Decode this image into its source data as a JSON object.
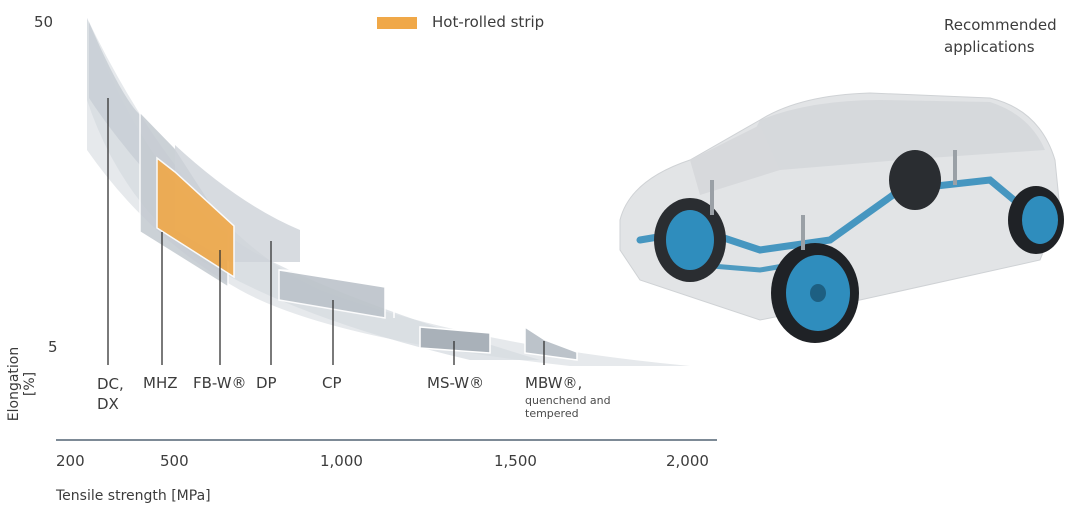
{
  "colors": {
    "accent": "#f0a848",
    "band_light": "#e3e6ea",
    "band_mid": "#ccd2d9",
    "steel_fill": "#b4bbc3",
    "axis": "#7d8a96",
    "hot_rolled": "#f0a848"
  },
  "legend": {
    "label": "Hot-rolled strip",
    "color": "#f0a848"
  },
  "recommended": {
    "line1": "Recommended",
    "line2": "applications"
  },
  "y_axis": {
    "label": "Elongation [%]",
    "ticks": [
      "50",
      "5"
    ],
    "scale": "log"
  },
  "x_axis": {
    "label": "Tensile strength [MPa]",
    "ticks": [
      "200",
      "500",
      "1,000",
      "1,500",
      "2,000"
    ]
  },
  "grades": [
    {
      "name": "DC,",
      "name2": "DX"
    },
    {
      "name": "MHZ"
    },
    {
      "name": "FB-W®"
    },
    {
      "name": "DP"
    },
    {
      "name": "CP"
    },
    {
      "name": "MS-W®"
    },
    {
      "name": "MBW®,",
      "note1": "quenchend and",
      "note2": "tempered"
    }
  ],
  "illustration": {
    "subject": "car-chassis-icon"
  }
}
